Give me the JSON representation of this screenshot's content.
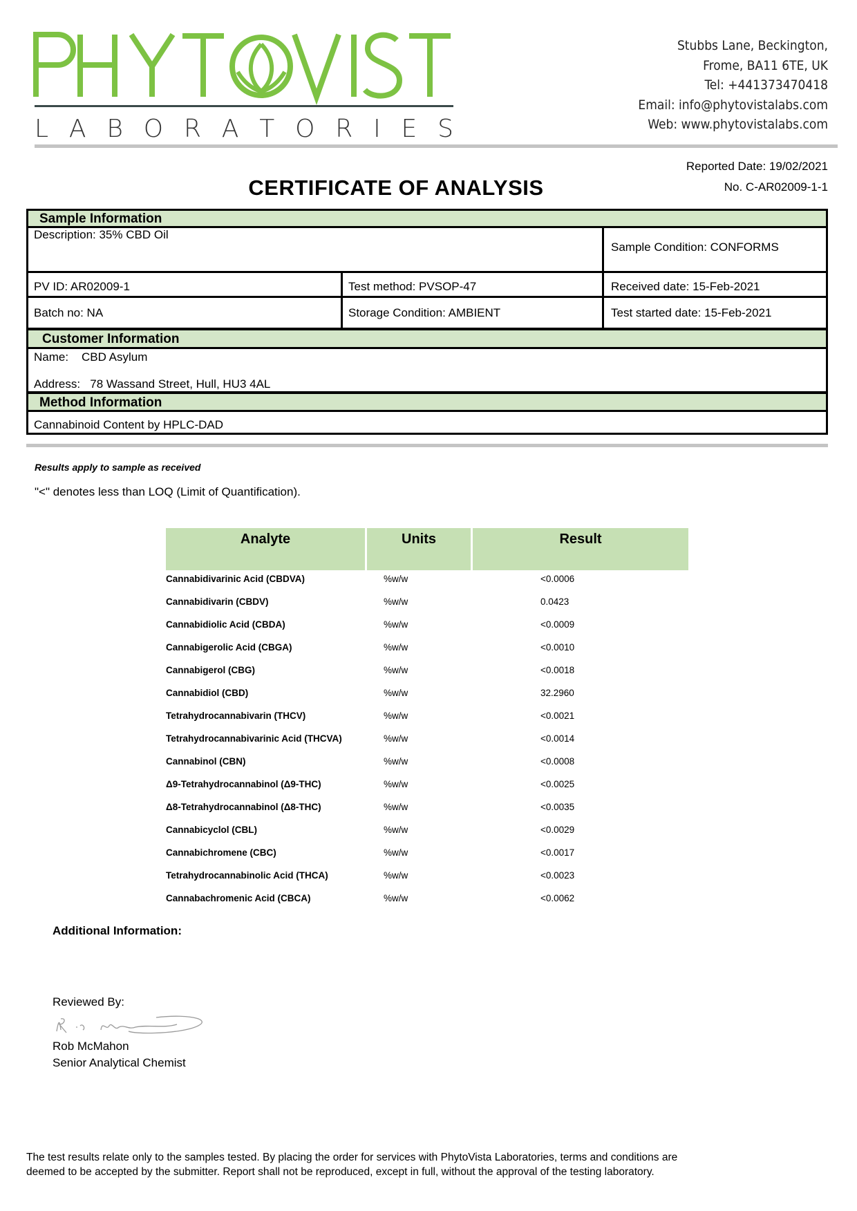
{
  "logo": {
    "main": "PHYTOVISTA",
    "sub": "LABORATORIES",
    "brand_color": "#7dc243"
  },
  "address": [
    "Stubbs Lane, Beckington,",
    "Frome, BA11 6TE, UK",
    "Tel: +441373470418",
    "Email: info@phytovistalabs.com",
    "Web: www.phytovistalabs.com"
  ],
  "meta": {
    "reported_date": "Reported Date: 19/02/2021",
    "number": "No. C-AR02009-1-1"
  },
  "title": "CERTIFICATE OF ANALYSIS",
  "sample": {
    "header": "Sample Information",
    "description": "Description: 35% CBD Oil",
    "condition": "Sample Condition: CONFORMS",
    "pv_id": "PV ID: AR02009-1",
    "test_method": "Test method: PVSOP-47",
    "received": "Received date: 15-Feb-2021",
    "batch": "Batch no: NA",
    "storage": "Storage Condition: AMBIENT",
    "test_started": "Test started date: 15-Feb-2021"
  },
  "customer": {
    "header": "Customer Information",
    "name_label": "Name:",
    "name": "CBD Asylum",
    "address_label": "Address:",
    "address": "78 Wassand Street, Hull, HU3 4AL"
  },
  "method": {
    "header": "Method Information",
    "value": "Cannabinoid Content by HPLC-DAD"
  },
  "notes": {
    "results_apply": "Results apply to sample as received",
    "loq": "\"<\" denotes less than LOQ (Limit of Quantification)."
  },
  "results": {
    "headers": [
      "Analyte",
      "Units",
      "Result"
    ],
    "rows": [
      {
        "analyte": "Cannabidivarinic Acid (CBDVA)",
        "units": "%w/w",
        "result": "<0.0006"
      },
      {
        "analyte": "Cannabidivarin (CBDV)",
        "units": "%w/w",
        "result": "0.0423"
      },
      {
        "analyte": "Cannabidiolic Acid (CBDA)",
        "units": "%w/w",
        "result": "<0.0009"
      },
      {
        "analyte": "Cannabigerolic Acid (CBGA)",
        "units": "%w/w",
        "result": "<0.0010"
      },
      {
        "analyte": "Cannabigerol (CBG)",
        "units": "%w/w",
        "result": "<0.0018"
      },
      {
        "analyte": "Cannabidiol (CBD)",
        "units": "%w/w",
        "result": "32.2960"
      },
      {
        "analyte": "Tetrahydrocannabivarin (THCV)",
        "units": "%w/w",
        "result": "<0.0021"
      },
      {
        "analyte": "Tetrahydrocannabivarinic Acid (THCVA)",
        "units": "%w/w",
        "result": "<0.0014"
      },
      {
        "analyte": "Cannabinol (CBN)",
        "units": "%w/w",
        "result": "<0.0008"
      },
      {
        "analyte": "Δ9-Tetrahydrocannabinol (Δ9-THC)",
        "units": "%w/w",
        "result": "<0.0025"
      },
      {
        "analyte": "Δ8-Tetrahydrocannabinol (Δ8-THC)",
        "units": "%w/w",
        "result": "<0.0035"
      },
      {
        "analyte": "Cannabicyclol (CBL)",
        "units": "%w/w",
        "result": "<0.0029"
      },
      {
        "analyte": "Cannabichromene (CBC)",
        "units": "%w/w",
        "result": "<0.0017"
      },
      {
        "analyte": "Tetrahydrocannabinolic Acid (THCA)",
        "units": "%w/w",
        "result": "<0.0023"
      },
      {
        "analyte": "Cannabachromenic Acid (CBCA)",
        "units": "%w/w",
        "result": "<0.0062"
      }
    ]
  },
  "additional_info_label": "Additional Information:",
  "review": {
    "label": "Reviewed By:",
    "name": "Rob McMahon",
    "role": "Senior Analytical Chemist"
  },
  "footer": [
    "The test results relate only to the samples tested.  By placing the order for services with PhytoVista Laboratories, terms and conditions are",
    "deemed to be accepted by the submitter. Report shall not be reproduced, except in full, without the approval of the testing laboratory."
  ]
}
